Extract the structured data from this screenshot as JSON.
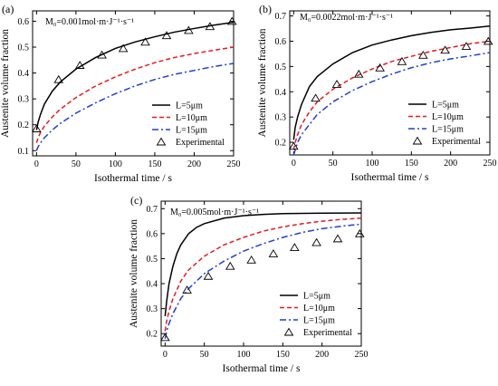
{
  "figure": {
    "background": "#ffffff"
  },
  "chart_data": [
    {
      "type": "line",
      "panel_label": "(a)",
      "annotation": "M₀=0.001mol·m·J⁻¹·s⁻¹",
      "xlabel": "Isothermal time / s",
      "ylabel": "Austenite volume fraction",
      "xlim": [
        -5,
        250
      ],
      "ylim": [
        0.08,
        0.64
      ],
      "xticks": [
        0,
        50,
        100,
        150,
        200,
        250
      ],
      "yticks": [
        0.1,
        0.2,
        0.3,
        0.4,
        0.5,
        0.6
      ],
      "grid": false,
      "legend_position": "bottom-right",
      "series": [
        {
          "name": "L=5μm",
          "style": "solid",
          "color": "#000000",
          "x": [
            0,
            2,
            5,
            10,
            20,
            30,
            50,
            75,
            100,
            125,
            150,
            175,
            200,
            225,
            250
          ],
          "y": [
            0.18,
            0.21,
            0.24,
            0.28,
            0.33,
            0.365,
            0.415,
            0.46,
            0.495,
            0.52,
            0.54,
            0.558,
            0.572,
            0.585,
            0.596
          ]
        },
        {
          "name": "L=10μm",
          "style": "dashed",
          "color": "#e8191e",
          "x": [
            0,
            2,
            5,
            10,
            20,
            30,
            50,
            75,
            100,
            125,
            150,
            175,
            200,
            225,
            250
          ],
          "y": [
            0.13,
            0.15,
            0.17,
            0.195,
            0.23,
            0.26,
            0.305,
            0.35,
            0.385,
            0.415,
            0.44,
            0.46,
            0.475,
            0.488,
            0.5
          ]
        },
        {
          "name": "L=15μm",
          "style": "dashdot",
          "color": "#1f3fd6",
          "x": [
            0,
            2,
            5,
            10,
            20,
            30,
            50,
            75,
            100,
            125,
            150,
            175,
            200,
            225,
            250
          ],
          "y": [
            0.1,
            0.115,
            0.13,
            0.15,
            0.18,
            0.205,
            0.245,
            0.285,
            0.32,
            0.35,
            0.375,
            0.395,
            0.41,
            0.425,
            0.437
          ]
        },
        {
          "name": "Experimental",
          "style": "marker",
          "color": "#000000",
          "x": [
            0,
            28,
            55,
            83,
            110,
            138,
            165,
            193,
            220,
            248
          ],
          "y": [
            0.185,
            0.375,
            0.43,
            0.47,
            0.495,
            0.52,
            0.545,
            0.565,
            0.58,
            0.6
          ]
        }
      ]
    },
    {
      "type": "line",
      "panel_label": "(b)",
      "annotation": "M₀=0.0022mol·m·J⁻¹·s⁻¹",
      "xlabel": "Isothermal time / s",
      "ylabel": "Austenite volume fraction",
      "xlim": [
        -5,
        250
      ],
      "ylim": [
        0.15,
        0.72
      ],
      "xticks": [
        0,
        50,
        100,
        150,
        200,
        250
      ],
      "yticks": [
        0.2,
        0.3,
        0.4,
        0.5,
        0.6,
        0.7
      ],
      "grid": false,
      "legend_position": "bottom-right",
      "series": [
        {
          "name": "L=5μm",
          "style": "solid",
          "color": "#000000",
          "x": [
            0,
            2,
            5,
            10,
            20,
            30,
            50,
            75,
            100,
            125,
            150,
            175,
            200,
            225,
            250
          ],
          "y": [
            0.21,
            0.26,
            0.3,
            0.35,
            0.42,
            0.46,
            0.51,
            0.555,
            0.585,
            0.605,
            0.622,
            0.635,
            0.645,
            0.652,
            0.66
          ]
        },
        {
          "name": "L=10μm",
          "style": "dashed",
          "color": "#e8191e",
          "x": [
            0,
            2,
            5,
            10,
            20,
            30,
            50,
            75,
            100,
            125,
            150,
            175,
            200,
            225,
            250
          ],
          "y": [
            0.17,
            0.2,
            0.23,
            0.27,
            0.32,
            0.36,
            0.41,
            0.455,
            0.49,
            0.52,
            0.54,
            0.56,
            0.575,
            0.59,
            0.6
          ]
        },
        {
          "name": "L=15μm",
          "style": "dashdot",
          "color": "#1f3fd6",
          "x": [
            0,
            2,
            5,
            10,
            20,
            30,
            50,
            75,
            100,
            125,
            150,
            175,
            200,
            225,
            250
          ],
          "y": [
            0.15,
            0.17,
            0.2,
            0.23,
            0.27,
            0.31,
            0.36,
            0.405,
            0.44,
            0.47,
            0.495,
            0.515,
            0.53,
            0.542,
            0.555
          ]
        },
        {
          "name": "Experimental",
          "style": "marker",
          "color": "#000000",
          "x": [
            0,
            28,
            55,
            83,
            110,
            138,
            165,
            193,
            220,
            248
          ],
          "y": [
            0.185,
            0.375,
            0.43,
            0.47,
            0.495,
            0.52,
            0.545,
            0.565,
            0.58,
            0.6
          ]
        }
      ]
    },
    {
      "type": "line",
      "panel_label": "(c)",
      "annotation": "M₀=0.005mol·m·J⁻¹·s⁻¹",
      "xlabel": "Isothermal time / s",
      "ylabel": "Austenite volume fraction",
      "xlim": [
        -5,
        250
      ],
      "ylim": [
        0.15,
        0.73
      ],
      "xticks": [
        0,
        50,
        100,
        150,
        200,
        250
      ],
      "yticks": [
        0.2,
        0.3,
        0.4,
        0.5,
        0.6,
        0.7
      ],
      "grid": false,
      "legend_position": "bottom-right",
      "series": [
        {
          "name": "L=5μm",
          "style": "solid",
          "color": "#000000",
          "x": [
            0,
            2,
            5,
            10,
            15,
            20,
            30,
            40,
            50,
            75,
            100,
            125,
            150,
            200,
            250
          ],
          "y": [
            0.27,
            0.33,
            0.4,
            0.47,
            0.52,
            0.555,
            0.6,
            0.625,
            0.64,
            0.662,
            0.672,
            0.677,
            0.68,
            0.682,
            0.683
          ]
        },
        {
          "name": "L=10μm",
          "style": "dashed",
          "color": "#e8191e",
          "x": [
            0,
            2,
            5,
            10,
            20,
            30,
            50,
            75,
            100,
            125,
            150,
            175,
            200,
            225,
            250
          ],
          "y": [
            0.21,
            0.25,
            0.29,
            0.34,
            0.41,
            0.455,
            0.51,
            0.555,
            0.585,
            0.61,
            0.627,
            0.64,
            0.65,
            0.657,
            0.662
          ]
        },
        {
          "name": "L=15μm",
          "style": "dashdot",
          "color": "#1f3fd6",
          "x": [
            0,
            2,
            5,
            10,
            20,
            30,
            50,
            75,
            100,
            125,
            150,
            175,
            200,
            225,
            250
          ],
          "y": [
            0.18,
            0.21,
            0.24,
            0.28,
            0.34,
            0.38,
            0.44,
            0.49,
            0.53,
            0.56,
            0.585,
            0.605,
            0.62,
            0.63,
            0.638
          ]
        },
        {
          "name": "Experimental",
          "style": "marker",
          "color": "#000000",
          "x": [
            0,
            28,
            55,
            83,
            110,
            138,
            165,
            193,
            220,
            248
          ],
          "y": [
            0.185,
            0.375,
            0.43,
            0.47,
            0.495,
            0.52,
            0.545,
            0.565,
            0.58,
            0.6
          ]
        }
      ]
    }
  ]
}
